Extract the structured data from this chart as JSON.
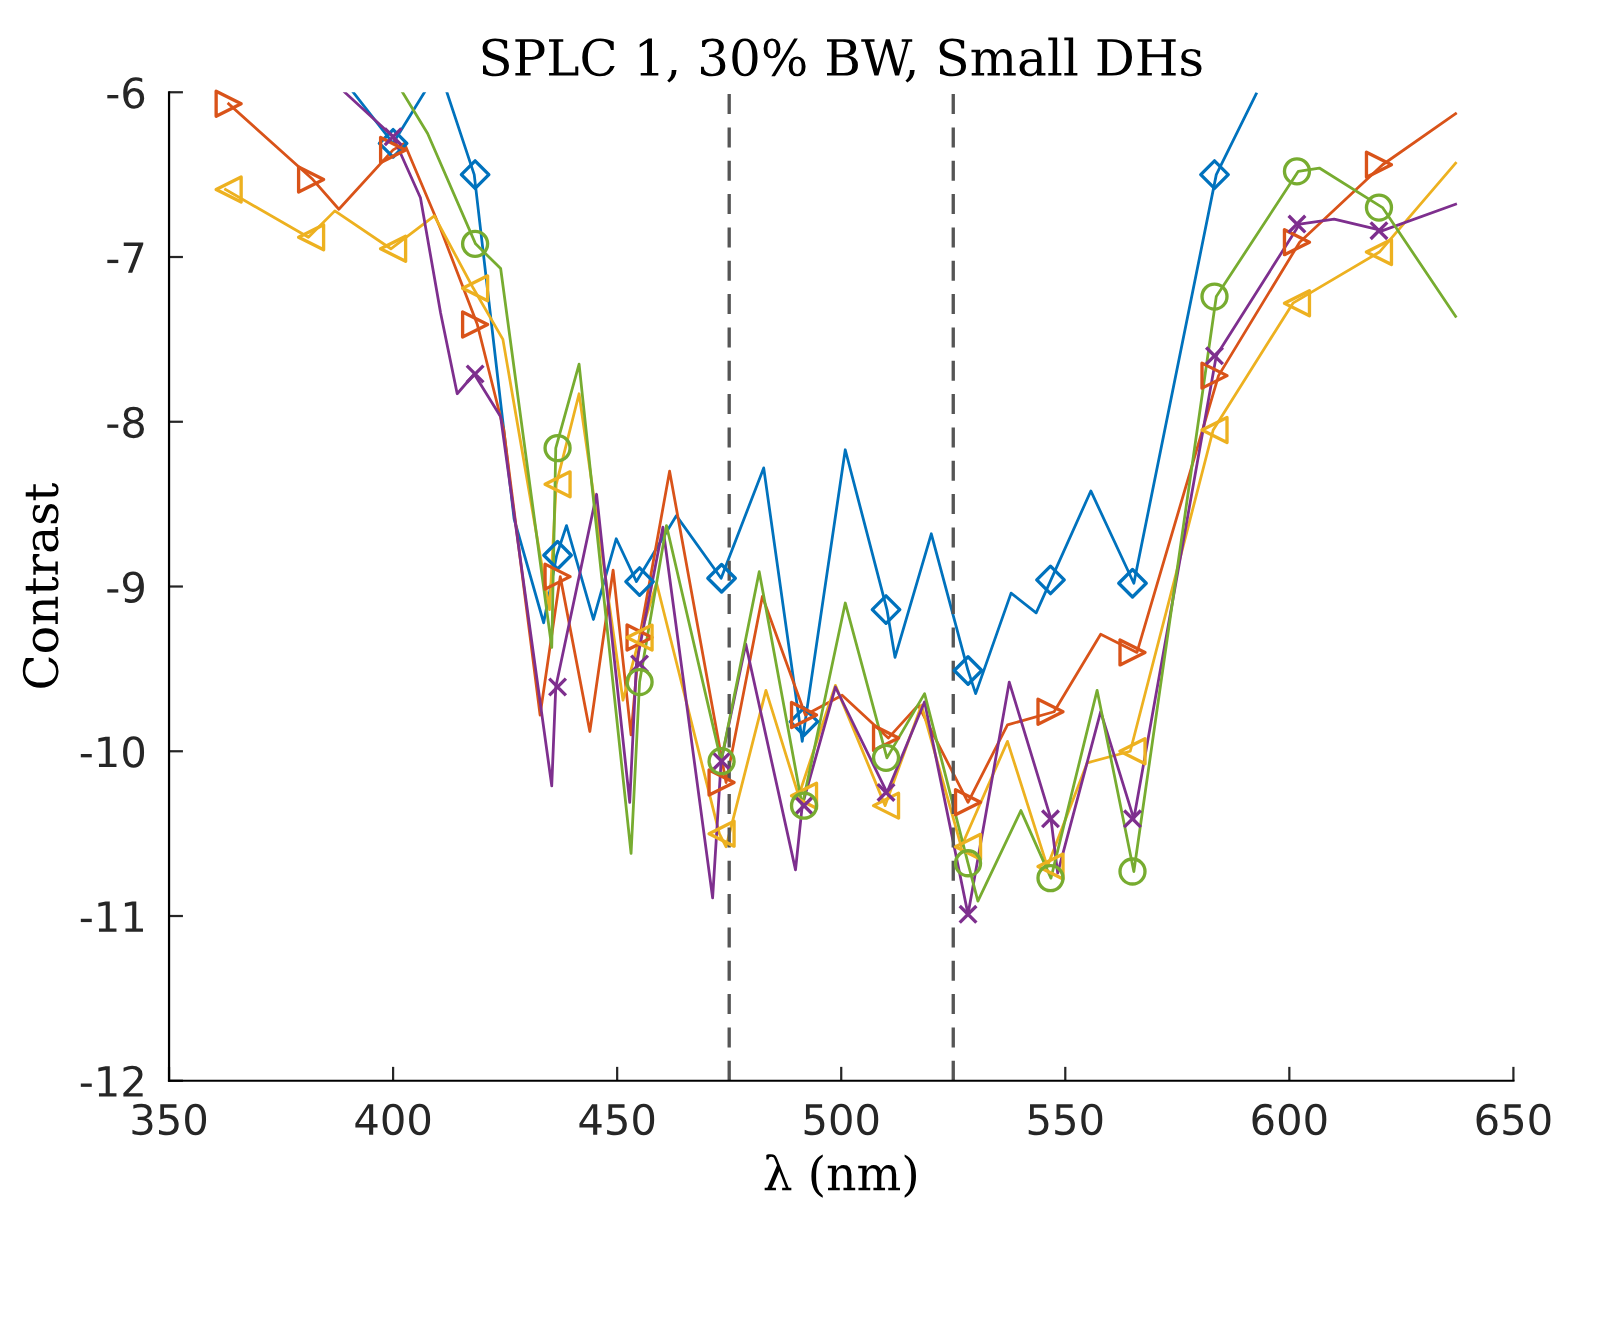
{
  "chart_data": {
    "type": "line",
    "title": "SPLC 1, 30% BW, Small DHs",
    "xlabel": "λ (nm)",
    "ylabel": "Contrast",
    "xlim": [
      350,
      650
    ],
    "ylim": [
      -12,
      -6
    ],
    "xticks": [
      350,
      400,
      450,
      500,
      550,
      600,
      650
    ],
    "yticks": [
      -12,
      -11,
      -10,
      -9,
      -8,
      -7,
      -6
    ],
    "grid": false,
    "legend": false,
    "ref_lines": [
      {
        "axis": "x",
        "value": 475,
        "color": "#555555",
        "line_style": "dashed"
      },
      {
        "axis": "x",
        "value": 525,
        "color": "#555555",
        "line_style": "dashed"
      }
    ],
    "series": [
      {
        "color": "#0072bd",
        "marker": "none",
        "x": [
          391.1,
          400,
          407,
          409.5,
          412,
          418.1,
          427,
          433.6,
          436.5,
          438.7,
          444.7,
          449.8,
          454.3,
          463.2,
          473.2,
          482.7,
          491.3,
          500.9,
          510.2,
          512,
          520.1,
          528.3,
          530,
          537.9,
          543.5,
          546.8,
          555.7,
          565.3,
          583.7,
          592.6
        ],
        "values": [
          -6.0,
          -6.31,
          -6.0,
          null,
          -6.0,
          -6.5,
          -8.59,
          -9.22,
          -8.81,
          -8.63,
          -9.2,
          -8.71,
          -8.97,
          -8.57,
          -8.95,
          -8.28,
          -9.94,
          -8.17,
          -9.14,
          -9.43,
          -8.68,
          -9.51,
          -9.65,
          -9.04,
          -9.16,
          -8.96,
          -8.42,
          -8.98,
          -6.5,
          -6.01
        ]
      },
      {
        "color": "#d95319",
        "marker": "none",
        "x": [
          363.3,
          382.1,
          387.9,
          400,
          402.5,
          410.6,
          418.8,
          424.7,
          432.8,
          437.3,
          443.9,
          449.1,
          453.1,
          455,
          461.7,
          474.3,
          482.4,
          492,
          500.2,
          510.5,
          517.2,
          528.3,
          537.1,
          547.5,
          557.9,
          566,
          584.2,
          602.3,
          620.8,
          637.1
        ],
        "values": [
          -6.07,
          -6.53,
          -6.71,
          -6.35,
          -6.31,
          -6.83,
          -7.41,
          -8.05,
          -9.78,
          -8.94,
          -9.88,
          -8.9,
          -9.9,
          -9.31,
          -8.3,
          -10.19,
          -9.06,
          -9.78,
          -9.66,
          -9.92,
          -9.72,
          -10.31,
          -9.84,
          -9.76,
          -9.29,
          -9.4,
          -7.72,
          -6.91,
          -6.44,
          -6.13
        ]
      },
      {
        "color": "#edb120",
        "marker": "none",
        "x": [
          362.6,
          381.1,
          387,
          399.5,
          409.2,
          417.9,
          424.5,
          434.9,
          436.4,
          441.5,
          451.3,
          455,
          458.8,
          472.8,
          474.3,
          483.2,
          490.5,
          498.7,
          509.8,
          517.9,
          526.8,
          537.1,
          546,
          554.9,
          564.5,
          583,
          600.8,
          620.1,
          637.1
        ],
        "values": [
          -6.59,
          -6.88,
          -6.72,
          -6.95,
          -6.75,
          -7.19,
          -7.5,
          -9.14,
          -8.38,
          -7.83,
          -9.69,
          -9.31,
          -8.98,
          -10.5,
          -10.58,
          -9.63,
          -10.27,
          -9.6,
          -10.33,
          -9.72,
          -10.58,
          -9.94,
          -10.7,
          -10.07,
          -10.0,
          -8.05,
          -7.28,
          -6.97,
          -6.43
        ]
      },
      {
        "color": "#7e2f8e",
        "marker": "none",
        "x": [
          389.2,
          400,
          406.1,
          410.6,
          414.3,
          418.1,
          424,
          435.4,
          436.3,
          445.4,
          452.8,
          454.3,
          460.2,
          471.3,
          473.2,
          478.7,
          489.8,
          491.3,
          498.7,
          510.2,
          518.6,
          528.3,
          537.5,
          546.8,
          548.3,
          557.9,
          565.3,
          583.7,
          602.3,
          610.0,
          620.8,
          637.1
        ],
        "values": [
          -6.0,
          -6.27,
          -6.64,
          -7.34,
          -7.83,
          -7.71,
          -7.97,
          -10.21,
          -9.61,
          -8.44,
          -10.31,
          -9.47,
          -8.64,
          -10.89,
          -10.06,
          -9.35,
          -10.72,
          -10.33,
          -9.61,
          -10.25,
          -9.7,
          -10.99,
          -9.58,
          -10.41,
          -10.74,
          -9.76,
          -10.41,
          -7.6,
          -6.8,
          -6.77,
          -6.84,
          -6.68
        ]
      },
      {
        "color": "#77ac30",
        "marker": "none",
        "x": [
          402.1,
          407.7,
          418.4,
          424,
          435.4,
          436.3,
          441.5,
          453.1,
          455,
          461,
          473.2,
          481.7,
          491.3,
          500.9,
          510.2,
          518.6,
          528.3,
          530.5,
          540.1,
          546.8,
          557.1,
          565.3,
          583.7,
          602,
          606.7,
          620.8,
          637.1
        ],
        "values": [
          -6.0,
          -6.25,
          -6.92,
          -7.07,
          -9.37,
          -8.16,
          -7.65,
          -10.62,
          -9.58,
          -8.63,
          -10.06,
          -8.91,
          -10.33,
          -9.1,
          -10.04,
          -9.65,
          -10.68,
          -10.91,
          -10.36,
          -10.77,
          -9.63,
          -10.73,
          -7.24,
          -6.48,
          -6.46,
          -6.7,
          -7.36
        ]
      },
      {
        "type": "scatter",
        "color": "#0072bd",
        "marker": "diamond",
        "x": [
          400,
          418.3,
          436.7,
          455,
          473.3,
          491.7,
          510,
          528.3,
          546.7,
          565,
          583.3
        ],
        "values": [
          -6.31,
          -6.5,
          -8.81,
          -8.97,
          -8.95,
          -9.82,
          -9.14,
          -9.51,
          -8.96,
          -8.98,
          -6.5
        ]
      },
      {
        "type": "scatter",
        "color": "#d95319",
        "marker": "triangle_right",
        "x": [
          363.3,
          381.7,
          400,
          418.3,
          436.7,
          455,
          473.3,
          491.7,
          510,
          528.3,
          546.7,
          565,
          583.3,
          601.7,
          620
        ],
        "values": [
          -6.07,
          -6.53,
          -6.35,
          -7.41,
          -8.94,
          -9.31,
          -10.19,
          -9.78,
          -9.92,
          -10.31,
          -9.76,
          -9.4,
          -7.72,
          -6.91,
          -6.44
        ]
      },
      {
        "type": "scatter",
        "color": "#edb120",
        "marker": "triangle_left",
        "x": [
          363.3,
          381.7,
          400,
          418.3,
          436.7,
          455,
          473.3,
          491.7,
          510,
          528.3,
          546.7,
          565,
          583.3,
          601.7,
          620
        ],
        "values": [
          -6.59,
          -6.88,
          -6.95,
          -7.19,
          -8.38,
          -9.31,
          -10.5,
          -10.27,
          -10.33,
          -10.58,
          -10.7,
          -10.0,
          -8.05,
          -7.28,
          -6.97
        ]
      },
      {
        "type": "scatter",
        "color": "#7e2f8e",
        "marker": "cross",
        "x": [
          400,
          418.3,
          436.7,
          455,
          473.3,
          491.7,
          510,
          528.3,
          546.7,
          565,
          583.3,
          601.7,
          620
        ],
        "values": [
          -6.27,
          -7.71,
          -9.61,
          -9.47,
          -10.06,
          -10.33,
          -10.25,
          -10.99,
          -10.41,
          -10.41,
          -7.6,
          -6.8,
          -6.84
        ]
      },
      {
        "type": "scatter",
        "color": "#77ac30",
        "marker": "circle",
        "x": [
          418.3,
          436.7,
          455,
          473.3,
          491.7,
          510,
          528.3,
          546.7,
          565,
          583.3,
          601.7,
          620
        ],
        "values": [
          -6.92,
          -8.16,
          -9.58,
          -10.06,
          -10.33,
          -10.04,
          -10.68,
          -10.77,
          -10.73,
          -7.24,
          -6.48,
          -6.7
        ]
      }
    ]
  }
}
